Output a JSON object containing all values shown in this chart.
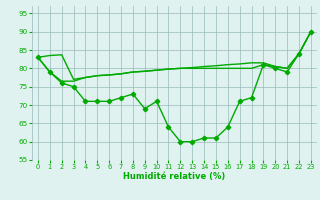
{
  "xlabel": "Humidité relative (%)",
  "xlim": [
    -0.5,
    23.5
  ],
  "ylim": [
    55,
    97
  ],
  "yticks": [
    55,
    60,
    65,
    70,
    75,
    80,
    85,
    90,
    95
  ],
  "xticks": [
    0,
    1,
    2,
    3,
    4,
    5,
    6,
    7,
    8,
    9,
    10,
    11,
    12,
    13,
    14,
    15,
    16,
    17,
    18,
    19,
    20,
    21,
    22,
    23
  ],
  "line_color": "#00aa00",
  "bg_color": "#dff2f0",
  "grid_color": "#99bbbb",
  "series_main": [
    83,
    79,
    76,
    75,
    71,
    71,
    71,
    72,
    73,
    69,
    71,
    64,
    60,
    60,
    61,
    61,
    64,
    71,
    72,
    81,
    80,
    79,
    84,
    90
  ],
  "series_diagonal": [
    83,
    83.5,
    83.7,
    77,
    77.5,
    78,
    78.2,
    78.5,
    79,
    79.2,
    79.5,
    79.8,
    80,
    80.2,
    80.5,
    80.7,
    81,
    81.2,
    81.5,
    81.5,
    80.5,
    80,
    84,
    90
  ],
  "series_flat": [
    83,
    79,
    76.5,
    76.5,
    77.5,
    78,
    78.2,
    78.5,
    79,
    79.2,
    79.5,
    79.8,
    80,
    80,
    80,
    80,
    80,
    80,
    80,
    81,
    80.5,
    80,
    84,
    90
  ]
}
